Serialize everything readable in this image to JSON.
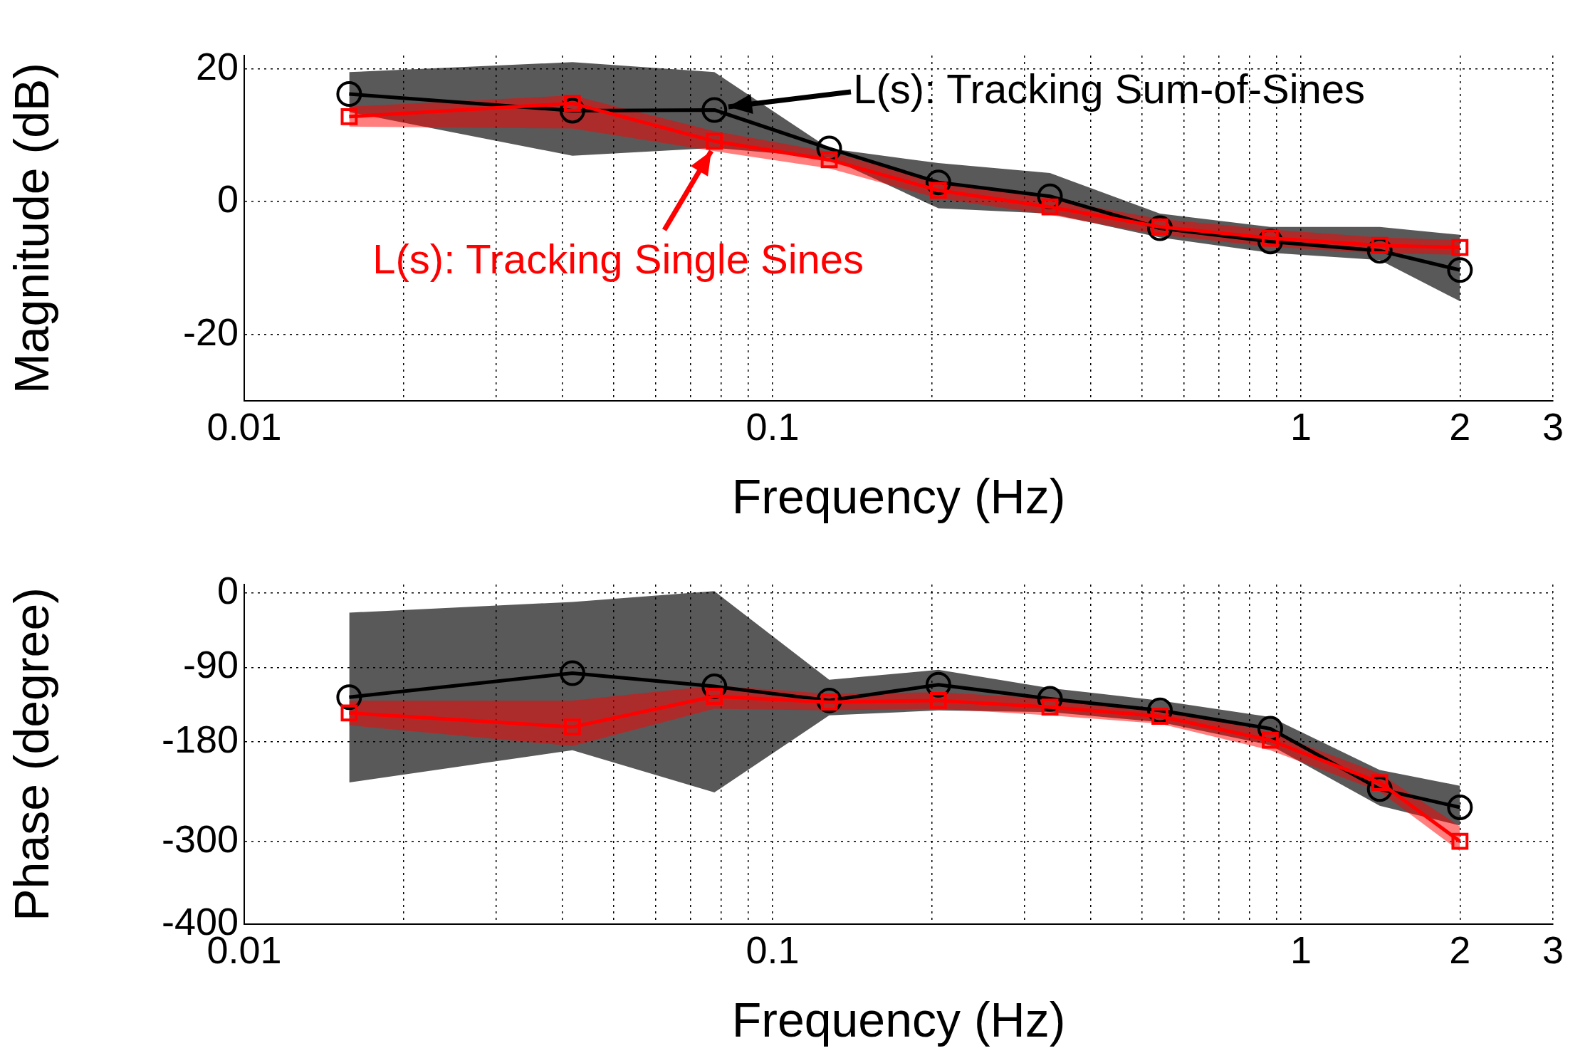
{
  "chart_data": [
    {
      "type": "line",
      "xlabel": "Frequency (Hz)",
      "ylabel": "Magnitude (dB)",
      "log": "x",
      "grid": true,
      "legend": "top right",
      "xlim": [
        0.01,
        3
      ],
      "ylim": [
        -30,
        22
      ],
      "xticks": [
        0.01,
        {
          "value": 0.02,
          "label": null
        },
        {
          "value": 0.03,
          "label": null
        },
        {
          "value": 0.04,
          "label": null
        },
        {
          "value": 0.05,
          "label": null
        },
        {
          "value": 0.06,
          "label": null
        },
        {
          "value": 0.07,
          "label": null
        },
        {
          "value": 0.08,
          "label": null
        },
        {
          "value": 0.09,
          "label": null
        },
        0.1,
        {
          "value": 0.2,
          "label": null
        },
        {
          "value": 0.3,
          "label": null
        },
        {
          "value": 0.4,
          "label": null
        },
        {
          "value": 0.5,
          "label": null
        },
        {
          "value": 0.6,
          "label": null
        },
        {
          "value": 0.7,
          "label": null
        },
        {
          "value": 0.8,
          "label": null
        },
        {
          "value": 0.9,
          "label": null
        },
        1,
        2,
        3
      ],
      "yticks": [
        -20,
        0,
        20
      ],
      "line_style": "solid",
      "x": [
        0.0158,
        0.0418,
        0.0776,
        0.128,
        0.206,
        0.335,
        0.541,
        0.875,
        1.41,
        2.0
      ],
      "series": [
        {
          "name": "L(s): Tracking Sum-of-Sines",
          "color": "#000000",
          "marker": "circle",
          "values": [
            16.2,
            13.7,
            13.8,
            8,
            2.9,
            0.8,
            -4,
            -6,
            -7.4,
            -10.3
          ],
          "lower": [
            13.5,
            6.9,
            8.1,
            6.6,
            -1,
            -1.8,
            -5.4,
            -7.7,
            -8.8,
            -15
          ],
          "upper": [
            19.5,
            21,
            19.5,
            8,
            5.8,
            4.3,
            -1.8,
            -3.8,
            -3.8,
            -5
          ]
        },
        {
          "name": "L(s): Tracking Single Sines",
          "color": "#ff0000",
          "marker": "square",
          "values": [
            12.8,
            14.8,
            9.1,
            6.3,
            1.7,
            -0.8,
            -3.8,
            -5.5,
            -6.6,
            -6.9
          ],
          "lower": [
            11.3,
            11,
            7.6,
            5,
            0.5,
            -2,
            -5,
            -6.8,
            -7.8,
            -8
          ],
          "upper": [
            14.3,
            16,
            10.6,
            7.5,
            3,
            0.4,
            -2.6,
            -4.2,
            -5.4,
            -5.8
          ]
        }
      ]
    },
    {
      "type": "line",
      "xlabel": "Frequency (Hz)",
      "ylabel": "Phase (degree)",
      "log": "x",
      "grid": true,
      "xlim": [
        0.01,
        3
      ],
      "ylim": [
        -400,
        10
      ],
      "xticks": [
        0.01,
        {
          "value": 0.02,
          "label": null
        },
        {
          "value": 0.03,
          "label": null
        },
        {
          "value": 0.04,
          "label": null
        },
        {
          "value": 0.05,
          "label": null
        },
        {
          "value": 0.06,
          "label": null
        },
        {
          "value": 0.07,
          "label": null
        },
        {
          "value": 0.08,
          "label": null
        },
        {
          "value": 0.09,
          "label": null
        },
        0.1,
        {
          "value": 0.2,
          "label": null
        },
        {
          "value": 0.3,
          "label": null
        },
        {
          "value": 0.4,
          "label": null
        },
        {
          "value": 0.5,
          "label": null
        },
        {
          "value": 0.6,
          "label": null
        },
        {
          "value": 0.7,
          "label": null
        },
        {
          "value": 0.8,
          "label": null
        },
        {
          "value": 0.9,
          "label": null
        },
        1,
        2,
        3
      ],
      "yticks": [
        -400,
        -300,
        -180,
        -90,
        0
      ],
      "line_style": "solid",
      "x": [
        0.0158,
        0.0418,
        0.0776,
        0.128,
        0.206,
        0.335,
        0.541,
        0.875,
        1.41,
        2.0
      ],
      "series": [
        {
          "color": "#000000",
          "marker": "circle",
          "values": [
            -126,
            -97,
            -113,
            -130,
            -111,
            -128,
            -142,
            -164,
            -237,
            -259
          ],
          "lower": [
            -229,
            -190,
            -241,
            -148,
            -142,
            -144,
            -156,
            -184,
            -257,
            -281
          ],
          "upper": [
            -24,
            -11,
            2,
            -105,
            -93,
            -115,
            -130,
            -150,
            -214,
            -233
          ]
        },
        {
          "color": "#ff0000",
          "marker": "square",
          "values": [
            -145,
            -162,
            -125,
            -132,
            -130,
            -138,
            -149,
            -178,
            -229,
            -300
          ],
          "lower": [
            -160,
            -185,
            -140,
            -142,
            -140,
            -148,
            -158,
            -190,
            -240,
            -312
          ],
          "upper": [
            -130,
            -130,
            -112,
            -122,
            -120,
            -128,
            -140,
            -168,
            -218,
            -282
          ]
        }
      ]
    }
  ]
}
